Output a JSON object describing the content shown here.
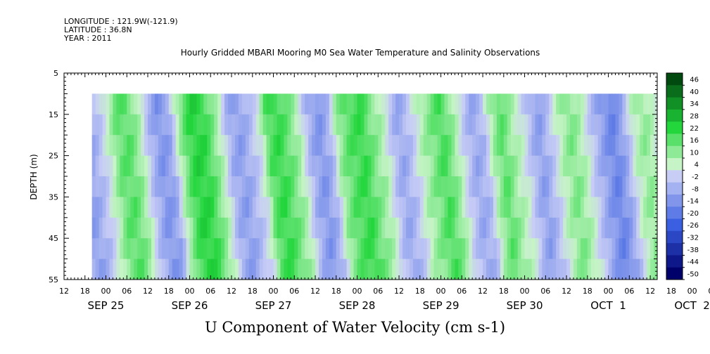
{
  "header": {
    "longitude": "LONGITUDE : 121.9W(-121.9)",
    "latitude": "LATITUDE : 36.8N",
    "year": "YEAR : 2011"
  },
  "chart_data": {
    "type": "heatmap",
    "title": "Hourly Gridded MBARI Mooring M0 Sea Water Temperature and Salinity Observations",
    "variable": "U Component of Water Velocity (cm s-1)",
    "ylabel": "DEPTH (m)",
    "y_axis": {
      "range": [
        5,
        55
      ],
      "inverted": true,
      "ticks": [
        5,
        15,
        25,
        35,
        45,
        55
      ]
    },
    "x_axis": {
      "start": "2011-09-25 12:00",
      "end": "2011-10-02 14:00",
      "hour_ticks": [
        "12",
        "18",
        "00",
        "06",
        "12",
        "18",
        "00",
        "06",
        "12",
        "18",
        "00",
        "06",
        "12",
        "18",
        "00",
        "06",
        "12",
        "18",
        "00",
        "06",
        "12",
        "18",
        "00",
        "06",
        "12",
        "18",
        "00",
        "06",
        "12",
        "18",
        "00",
        "06",
        "12",
        "18",
        "00",
        "06",
        "12"
      ],
      "date_labels": [
        "SEP 25",
        "SEP 26",
        "SEP 27",
        "SEP 28",
        "SEP 29",
        "SEP 30",
        "OCT  1",
        "OCT  2"
      ]
    },
    "data_extent": {
      "depth_range": [
        10,
        55
      ],
      "time_start": "2011-09-25 20:00",
      "time_end": "2011-10-02 14:00"
    },
    "colorbar": {
      "levels": [
        -50,
        -44,
        -38,
        -32,
        -26,
        -20,
        -14,
        -8,
        -2,
        4,
        10,
        16,
        22,
        28,
        34,
        40,
        46
      ],
      "labels": [
        "46",
        "40",
        "34",
        "28",
        "22",
        "16",
        "10",
        "4",
        "-2",
        "-8",
        "-14",
        "-20",
        "-26",
        "-32",
        "-38",
        "-44",
        "-50"
      ],
      "colors": {
        "negative_extreme": "#00006b",
        "negative_mid": "#3a5fe0",
        "near_zero_negative": "#c8cdf6",
        "near_zero_positive": "#c6f4c6",
        "positive_mid": "#22d63c",
        "positive_extreme": "#004a10"
      }
    },
    "bands": [
      {
        "t": 0,
        "v": -6
      },
      {
        "t": 5,
        "v": -12
      },
      {
        "t": 9,
        "v": -4
      },
      {
        "t": 12,
        "v": 6
      },
      {
        "t": 14,
        "v": 14
      },
      {
        "t": 17,
        "v": 16
      },
      {
        "t": 20,
        "v": 8
      },
      {
        "t": 23,
        "v": -6
      },
      {
        "t": 26,
        "v": -14
      },
      {
        "t": 29,
        "v": -10
      },
      {
        "t": 31,
        "v": 4
      },
      {
        "t": 34,
        "v": 18
      },
      {
        "t": 36,
        "v": 22
      },
      {
        "t": 39,
        "v": 20
      },
      {
        "t": 42,
        "v": 10
      },
      {
        "t": 44,
        "v": 2
      },
      {
        "t": 46,
        "v": -8
      },
      {
        "t": 49,
        "v": -12
      },
      {
        "t": 52,
        "v": -6
      },
      {
        "t": 55,
        "v": 2
      },
      {
        "t": 57,
        "v": 16
      },
      {
        "t": 60,
        "v": 20
      },
      {
        "t": 63,
        "v": 14
      },
      {
        "t": 66,
        "v": 6
      },
      {
        "t": 69,
        "v": -8
      },
      {
        "t": 72,
        "v": -14
      },
      {
        "t": 75,
        "v": -6
      },
      {
        "t": 77,
        "v": 8
      },
      {
        "t": 80,
        "v": 16
      },
      {
        "t": 84,
        "v": 20
      },
      {
        "t": 87,
        "v": 12
      },
      {
        "t": 90,
        "v": 6
      },
      {
        "t": 93,
        "v": -6
      },
      {
        "t": 95,
        "v": -10
      },
      {
        "t": 98,
        "v": -4
      },
      {
        "t": 101,
        "v": 6
      },
      {
        "t": 104,
        "v": 12
      },
      {
        "t": 107,
        "v": 18
      },
      {
        "t": 110,
        "v": 10
      },
      {
        "t": 113,
        "v": -2
      },
      {
        "t": 116,
        "v": -10
      },
      {
        "t": 119,
        "v": -6
      },
      {
        "t": 121,
        "v": 6
      },
      {
        "t": 124,
        "v": 16
      },
      {
        "t": 127,
        "v": 8
      },
      {
        "t": 130,
        "v": 2
      },
      {
        "t": 133,
        "v": -8
      },
      {
        "t": 135,
        "v": -12
      },
      {
        "t": 138,
        "v": -4
      },
      {
        "t": 141,
        "v": 6
      },
      {
        "t": 144,
        "v": 12
      },
      {
        "t": 147,
        "v": 6
      },
      {
        "t": 150,
        "v": -4
      },
      {
        "t": 153,
        "v": -12
      },
      {
        "t": 156,
        "v": -18
      },
      {
        "t": 159,
        "v": -10
      },
      {
        "t": 162,
        "v": 4
      },
      {
        "t": 165,
        "v": 10
      },
      {
        "t": 168,
        "v": 4
      },
      {
        "t": 170,
        "v": -6
      }
    ]
  }
}
